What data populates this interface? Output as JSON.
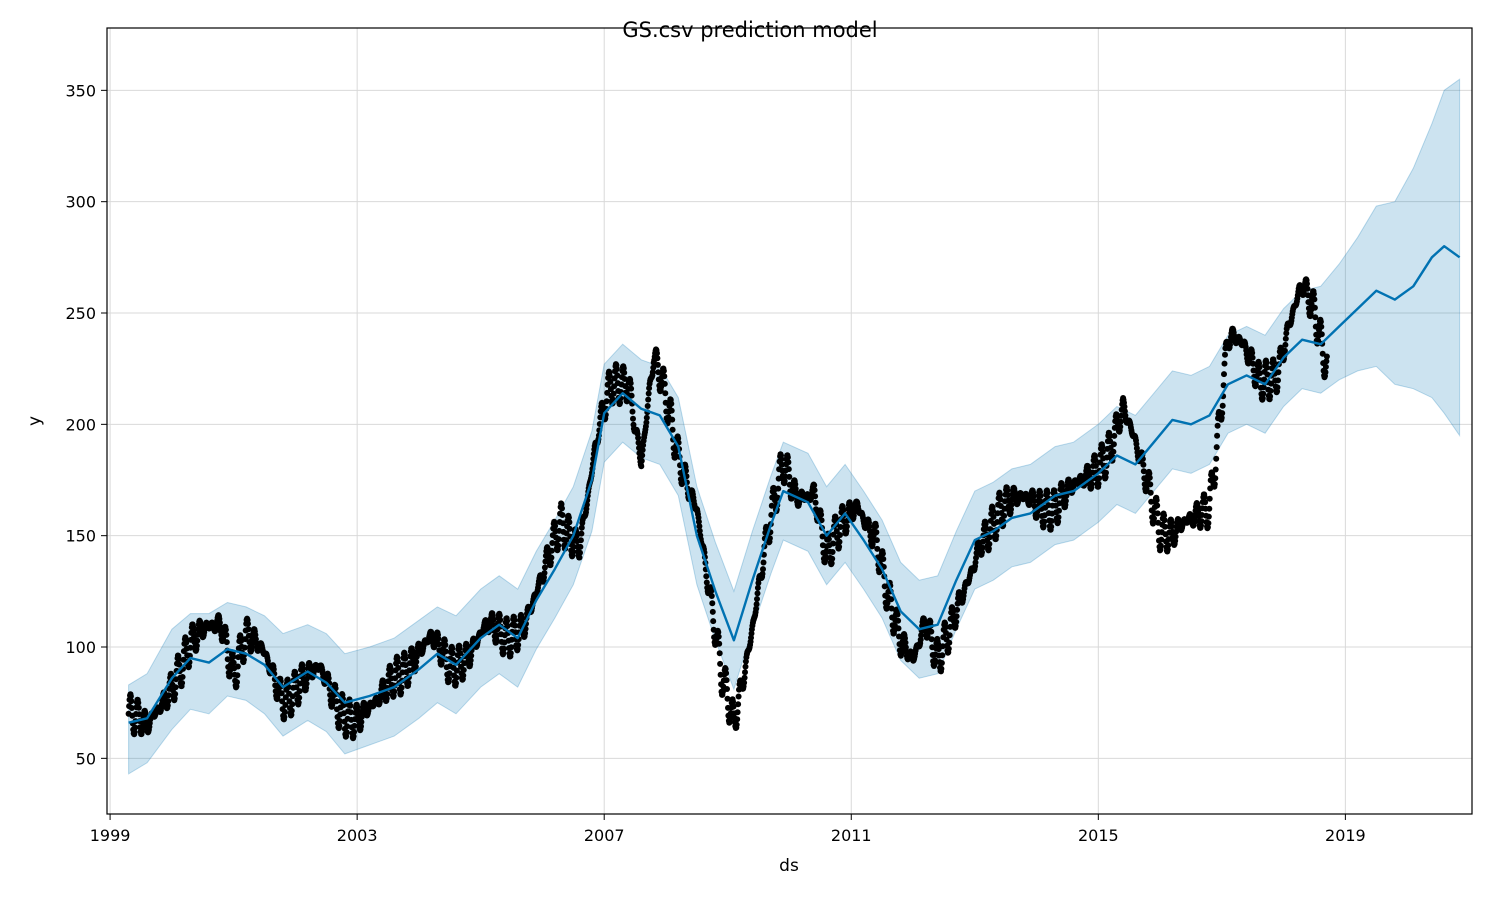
{
  "chart_data": {
    "type": "line",
    "title": "GS.csv prediction model",
    "xlabel": "ds",
    "ylabel": "y",
    "xlim": [
      1998.95,
      2021.05
    ],
    "ylim": [
      25,
      378
    ],
    "x_ticks": [
      1999,
      2003,
      2007,
      2011,
      2015,
      2019
    ],
    "y_ticks": [
      50,
      100,
      150,
      200,
      250,
      300,
      350
    ],
    "grid": true,
    "legend": "none",
    "colors": {
      "forecast": "#0072B2",
      "band": "#0072B2",
      "observed": "#000000",
      "grid": "#d9d9d9"
    },
    "forecast": {
      "name": "yhat",
      "points": [
        [
          1999.3,
          66
        ],
        [
          1999.6,
          68
        ],
        [
          2000.0,
          86
        ],
        [
          2000.3,
          95
        ],
        [
          2000.6,
          93
        ],
        [
          2000.9,
          99
        ],
        [
          2001.2,
          97
        ],
        [
          2001.5,
          92
        ],
        [
          2001.8,
          82
        ],
        [
          2002.2,
          89
        ],
        [
          2002.5,
          84
        ],
        [
          2002.8,
          75
        ],
        [
          2003.2,
          78
        ],
        [
          2003.6,
          82
        ],
        [
          2004.0,
          90
        ],
        [
          2004.3,
          97
        ],
        [
          2004.6,
          92
        ],
        [
          2005.0,
          104
        ],
        [
          2005.3,
          110
        ],
        [
          2005.6,
          104
        ],
        [
          2005.9,
          121
        ],
        [
          2006.2,
          135
        ],
        [
          2006.5,
          150
        ],
        [
          2006.8,
          175
        ],
        [
          2007.0,
          205
        ],
        [
          2007.3,
          214
        ],
        [
          2007.6,
          207
        ],
        [
          2007.9,
          204
        ],
        [
          2008.2,
          190
        ],
        [
          2008.5,
          150
        ],
        [
          2008.8,
          125
        ],
        [
          2009.1,
          103
        ],
        [
          2009.4,
          130
        ],
        [
          2009.7,
          155
        ],
        [
          2009.9,
          170
        ],
        [
          2010.3,
          165
        ],
        [
          2010.6,
          150
        ],
        [
          2010.9,
          160
        ],
        [
          2011.2,
          148
        ],
        [
          2011.5,
          135
        ],
        [
          2011.8,
          116
        ],
        [
          2012.1,
          108
        ],
        [
          2012.4,
          110
        ],
        [
          2012.7,
          130
        ],
        [
          2013.0,
          148
        ],
        [
          2013.3,
          152
        ],
        [
          2013.6,
          158
        ],
        [
          2013.9,
          160
        ],
        [
          2014.3,
          168
        ],
        [
          2014.6,
          170
        ],
        [
          2015.0,
          178
        ],
        [
          2015.3,
          186
        ],
        [
          2015.6,
          182
        ],
        [
          2015.9,
          192
        ],
        [
          2016.2,
          202
        ],
        [
          2016.5,
          200
        ],
        [
          2016.8,
          204
        ],
        [
          2017.1,
          218
        ],
        [
          2017.4,
          222
        ],
        [
          2017.7,
          218
        ],
        [
          2018.0,
          230
        ],
        [
          2018.3,
          238
        ],
        [
          2018.6,
          236
        ],
        [
          2018.9,
          244
        ],
        [
          2019.2,
          252
        ],
        [
          2019.5,
          260
        ],
        [
          2019.8,
          256
        ],
        [
          2020.1,
          262
        ],
        [
          2020.4,
          275
        ],
        [
          2020.6,
          280
        ],
        [
          2020.85,
          275
        ]
      ]
    },
    "uncertainty_band": {
      "name": "yhat_lower / yhat_upper",
      "points": [
        [
          1999.3,
          43,
          83
        ],
        [
          1999.6,
          48,
          88
        ],
        [
          2000.0,
          63,
          108
        ],
        [
          2000.3,
          72,
          115
        ],
        [
          2000.6,
          70,
          115
        ],
        [
          2000.9,
          78,
          120
        ],
        [
          2001.2,
          76,
          118
        ],
        [
          2001.5,
          70,
          114
        ],
        [
          2001.8,
          60,
          106
        ],
        [
          2002.2,
          67,
          110
        ],
        [
          2002.5,
          62,
          106
        ],
        [
          2002.8,
          52,
          97
        ],
        [
          2003.2,
          56,
          100
        ],
        [
          2003.6,
          60,
          104
        ],
        [
          2004.0,
          68,
          112
        ],
        [
          2004.3,
          75,
          118
        ],
        [
          2004.6,
          70,
          114
        ],
        [
          2005.0,
          82,
          126
        ],
        [
          2005.3,
          88,
          132
        ],
        [
          2005.6,
          82,
          126
        ],
        [
          2005.9,
          99,
          143
        ],
        [
          2006.2,
          113,
          157
        ],
        [
          2006.5,
          128,
          172
        ],
        [
          2006.8,
          152,
          197
        ],
        [
          2007.0,
          183,
          227
        ],
        [
          2007.3,
          192,
          236
        ],
        [
          2007.6,
          185,
          229
        ],
        [
          2007.9,
          182,
          226
        ],
        [
          2008.2,
          168,
          212
        ],
        [
          2008.5,
          128,
          172
        ],
        [
          2008.8,
          103,
          147
        ],
        [
          2009.1,
          81,
          125
        ],
        [
          2009.4,
          108,
          152
        ],
        [
          2009.7,
          133,
          177
        ],
        [
          2009.9,
          148,
          192
        ],
        [
          2010.3,
          143,
          187
        ],
        [
          2010.6,
          128,
          172
        ],
        [
          2010.9,
          138,
          182
        ],
        [
          2011.2,
          126,
          170
        ],
        [
          2011.5,
          113,
          157
        ],
        [
          2011.8,
          94,
          138
        ],
        [
          2012.1,
          86,
          130
        ],
        [
          2012.4,
          88,
          132
        ],
        [
          2012.7,
          108,
          152
        ],
        [
          2013.0,
          126,
          170
        ],
        [
          2013.3,
          130,
          174
        ],
        [
          2013.6,
          136,
          180
        ],
        [
          2013.9,
          138,
          182
        ],
        [
          2014.3,
          146,
          190
        ],
        [
          2014.6,
          148,
          192
        ],
        [
          2015.0,
          156,
          200
        ],
        [
          2015.3,
          164,
          208
        ],
        [
          2015.6,
          160,
          204
        ],
        [
          2015.9,
          170,
          214
        ],
        [
          2016.2,
          180,
          224
        ],
        [
          2016.5,
          178,
          222
        ],
        [
          2016.8,
          182,
          226
        ],
        [
          2017.1,
          196,
          240
        ],
        [
          2017.4,
          200,
          244
        ],
        [
          2017.7,
          196,
          240
        ],
        [
          2018.0,
          208,
          252
        ],
        [
          2018.3,
          216,
          260
        ],
        [
          2018.6,
          214,
          262
        ],
        [
          2018.9,
          220,
          272
        ],
        [
          2019.2,
          224,
          284
        ],
        [
          2019.5,
          226,
          298
        ],
        [
          2019.8,
          218,
          300
        ],
        [
          2020.1,
          216,
          315
        ],
        [
          2020.4,
          212,
          335
        ],
        [
          2020.6,
          205,
          350
        ],
        [
          2020.85,
          195,
          355
        ]
      ]
    },
    "observed": {
      "name": "y",
      "anchors": [
        [
          1999.3,
          70
        ],
        [
          1999.6,
          62
        ],
        [
          2000.0,
          85
        ],
        [
          2000.3,
          100
        ],
        [
          2000.5,
          105
        ],
        [
          2000.8,
          112
        ],
        [
          2001.0,
          90
        ],
        [
          2001.2,
          105
        ],
        [
          2001.5,
          95
        ],
        [
          2001.8,
          78
        ],
        [
          2002.1,
          85
        ],
        [
          2002.4,
          88
        ],
        [
          2002.7,
          74
        ],
        [
          2003.0,
          68
        ],
        [
          2003.3,
          72
        ],
        [
          2003.6,
          88
        ],
        [
          2003.9,
          95
        ],
        [
          2004.2,
          102
        ],
        [
          2004.5,
          92
        ],
        [
          2004.8,
          98
        ],
        [
          2005.1,
          108
        ],
        [
          2005.4,
          104
        ],
        [
          2005.7,
          112
        ],
        [
          2006.0,
          130
        ],
        [
          2006.3,
          155
        ],
        [
          2006.6,
          148
        ],
        [
          2006.9,
          195
        ],
        [
          2007.1,
          215
        ],
        [
          2007.4,
          220
        ],
        [
          2007.6,
          185
        ],
        [
          2007.8,
          230
        ],
        [
          2007.95,
          215
        ],
        [
          2008.2,
          185
        ],
        [
          2008.5,
          165
        ],
        [
          2008.7,
          125
        ],
        [
          2008.9,
          85
        ],
        [
          2009.1,
          65
        ],
        [
          2009.3,
          95
        ],
        [
          2009.6,
          145
        ],
        [
          2009.9,
          180
        ],
        [
          2010.1,
          168
        ],
        [
          2010.4,
          172
        ],
        [
          2010.6,
          140
        ],
        [
          2010.9,
          155
        ],
        [
          2011.1,
          165
        ],
        [
          2011.4,
          150
        ],
        [
          2011.6,
          120
        ],
        [
          2011.8,
          100
        ],
        [
          2012.0,
          95
        ],
        [
          2012.2,
          115
        ],
        [
          2012.4,
          95
        ],
        [
          2012.6,
          105
        ],
        [
          2012.9,
          130
        ],
        [
          2013.1,
          150
        ],
        [
          2013.4,
          160
        ],
        [
          2013.7,
          165
        ],
        [
          2013.9,
          168
        ],
        [
          2014.3,
          162
        ],
        [
          2014.6,
          170
        ],
        [
          2014.9,
          180
        ],
        [
          2015.2,
          190
        ],
        [
          2015.4,
          205
        ],
        [
          2015.6,
          190
        ],
        [
          2015.8,
          175
        ],
        [
          2016.0,
          155
        ],
        [
          2016.2,
          150
        ],
        [
          2016.5,
          155
        ],
        [
          2016.8,
          165
        ],
        [
          2016.95,
          200
        ],
        [
          2017.1,
          240
        ],
        [
          2017.3,
          235
        ],
        [
          2017.6,
          220
        ],
        [
          2017.9,
          225
        ],
        [
          2018.1,
          245
        ],
        [
          2018.3,
          260
        ],
        [
          2018.5,
          250
        ],
        [
          2018.7,
          228
        ]
      ]
    }
  }
}
